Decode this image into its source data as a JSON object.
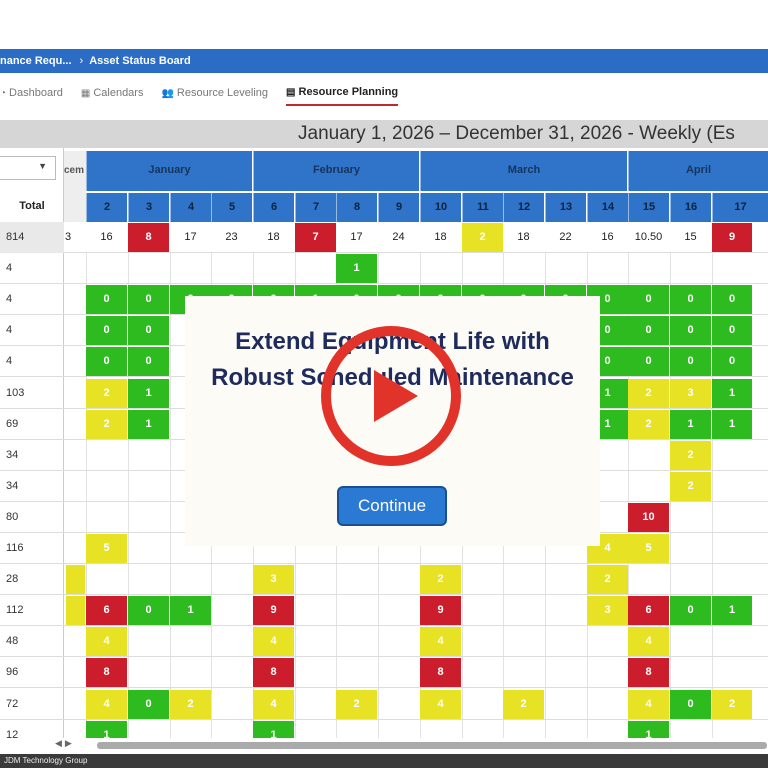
{
  "breadcrumb": {
    "parent": "nance Requ...",
    "current": "Asset Status Board"
  },
  "tabs": [
    {
      "label": "Dashboard",
      "icon": "dashboard-icon"
    },
    {
      "label": "Calendars",
      "icon": "calendar-icon"
    },
    {
      "label": "Resource Leveling",
      "icon": "users-icon"
    },
    {
      "label": "Resource Planning",
      "icon": "planning-icon",
      "active": true
    }
  ],
  "title": "January 1, 2026 – December 31, 2026 - Weekly (Es",
  "left": {
    "total_label": "Total",
    "prev_month_fragment": "cem"
  },
  "months": [
    "January",
    "February",
    "March",
    "April"
  ],
  "weeks": [
    "2",
    "3",
    "4",
    "5",
    "6",
    "7",
    "8",
    "9",
    "10",
    "11",
    "12",
    "13",
    "14",
    "15",
    "16",
    "17"
  ],
  "rows": [
    {
      "total": "814",
      "lead": "3",
      "cells": [
        {
          "v": "16"
        },
        {
          "v": "8",
          "c": "r"
        },
        {
          "v": "17"
        },
        {
          "v": "23"
        },
        {
          "v": "18"
        },
        {
          "v": "7",
          "c": "r"
        },
        {
          "v": "17"
        },
        {
          "v": "24"
        },
        {
          "v": "18"
        },
        {
          "v": "2",
          "c": "y"
        },
        {
          "v": "18"
        },
        {
          "v": "22"
        },
        {
          "v": "16"
        },
        {
          "v": "10.50"
        },
        {
          "v": "15"
        },
        {
          "v": "9",
          "c": "r"
        }
      ]
    },
    {
      "total": "4",
      "cells": [
        {},
        {},
        {},
        {},
        {},
        {},
        {
          "v": "1",
          "c": "g"
        },
        {},
        {},
        {},
        {},
        {},
        {},
        {},
        {},
        {}
      ]
    },
    {
      "total": "4",
      "cells": [
        {
          "v": "0",
          "c": "g"
        },
        {
          "v": "0",
          "c": "g"
        },
        {
          "v": "0",
          "c": "g"
        },
        {
          "v": "0",
          "c": "g"
        },
        {
          "v": "0",
          "c": "g"
        },
        {
          "v": "1",
          "c": "g"
        },
        {
          "v": "0",
          "c": "g"
        },
        {
          "v": "0",
          "c": "g"
        },
        {
          "v": "0",
          "c": "g"
        },
        {
          "v": "0",
          "c": "g"
        },
        {
          "v": "0",
          "c": "g"
        },
        {
          "v": "0",
          "c": "g"
        },
        {
          "v": "0",
          "c": "g"
        },
        {
          "v": "0",
          "c": "g"
        },
        {
          "v": "0",
          "c": "g"
        },
        {
          "v": "0",
          "c": "g"
        }
      ]
    },
    {
      "total": "4",
      "cells": [
        {
          "v": "0",
          "c": "g"
        },
        {
          "v": "0",
          "c": "g"
        },
        {},
        {},
        {},
        {},
        {},
        {},
        {},
        {},
        {},
        {},
        {
          "v": "0",
          "c": "g"
        },
        {
          "v": "0",
          "c": "g"
        },
        {
          "v": "0",
          "c": "g"
        },
        {
          "v": "0",
          "c": "g"
        }
      ]
    },
    {
      "total": "4",
      "cells": [
        {
          "v": "0",
          "c": "g"
        },
        {
          "v": "0",
          "c": "g"
        },
        {},
        {},
        {},
        {},
        {},
        {},
        {},
        {},
        {},
        {},
        {
          "v": "0",
          "c": "g"
        },
        {
          "v": "0",
          "c": "g"
        },
        {
          "v": "0",
          "c": "g"
        },
        {
          "v": "0",
          "c": "g"
        }
      ]
    },
    {
      "total": "103",
      "cells": [
        {
          "v": "2",
          "c": "y"
        },
        {
          "v": "1",
          "c": "g"
        },
        {},
        {},
        {},
        {},
        {},
        {},
        {},
        {},
        {},
        {},
        {
          "v": "1",
          "c": "g"
        },
        {
          "v": "2",
          "c": "y"
        },
        {
          "v": "3",
          "c": "y"
        },
        {
          "v": "1",
          "c": "g"
        }
      ]
    },
    {
      "total": "69",
      "cells": [
        {
          "v": "2",
          "c": "y"
        },
        {
          "v": "1",
          "c": "g"
        },
        {},
        {},
        {},
        {},
        {},
        {},
        {},
        {},
        {},
        {},
        {
          "v": "1",
          "c": "g"
        },
        {
          "v": "2",
          "c": "y"
        },
        {
          "v": "1",
          "c": "g"
        },
        {
          "v": "1",
          "c": "g"
        }
      ]
    },
    {
      "total": "34",
      "cells": [
        {},
        {},
        {},
        {},
        {},
        {},
        {},
        {},
        {},
        {},
        {},
        {},
        {},
        {},
        {
          "v": "2",
          "c": "y"
        },
        {}
      ]
    },
    {
      "total": "34",
      "cells": [
        {},
        {},
        {},
        {},
        {},
        {},
        {},
        {},
        {},
        {},
        {},
        {},
        {},
        {},
        {
          "v": "2",
          "c": "y"
        },
        {}
      ]
    },
    {
      "total": "80",
      "cells": [
        {},
        {},
        {},
        {},
        {},
        {},
        {},
        {},
        {},
        {},
        {},
        {},
        {},
        {
          "v": "10",
          "c": "r"
        },
        {},
        {}
      ]
    },
    {
      "total": "116",
      "cells": [
        {
          "v": "5",
          "c": "y"
        },
        {},
        {},
        {},
        {},
        {},
        {},
        {},
        {},
        {},
        {},
        {},
        {
          "v": "4",
          "c": "y"
        },
        {
          "v": "5",
          "c": "y"
        },
        {},
        {}
      ]
    },
    {
      "total": "28",
      "lead_c": "y",
      "cells": [
        {},
        {},
        {},
        {},
        {
          "v": "3",
          "c": "y"
        },
        {},
        {},
        {},
        {
          "v": "2",
          "c": "y"
        },
        {},
        {},
        {},
        {
          "v": "2",
          "c": "y"
        },
        {},
        {},
        {}
      ]
    },
    {
      "total": "112",
      "lead_c": "y",
      "cells": [
        {
          "v": "6",
          "c": "r"
        },
        {
          "v": "0",
          "c": "g"
        },
        {
          "v": "1",
          "c": "g"
        },
        {},
        {
          "v": "9",
          "c": "r"
        },
        {},
        {},
        {},
        {
          "v": "9",
          "c": "r"
        },
        {},
        {},
        {},
        {
          "v": "3",
          "c": "y"
        },
        {
          "v": "6",
          "c": "r"
        },
        {
          "v": "0",
          "c": "g"
        },
        {
          "v": "1",
          "c": "g"
        }
      ]
    },
    {
      "total": "48",
      "cells": [
        {
          "v": "4",
          "c": "y"
        },
        {},
        {},
        {},
        {
          "v": "4",
          "c": "y"
        },
        {},
        {},
        {},
        {
          "v": "4",
          "c": "y"
        },
        {},
        {},
        {},
        {},
        {
          "v": "4",
          "c": "y"
        },
        {},
        {}
      ]
    },
    {
      "total": "96",
      "cells": [
        {
          "v": "8",
          "c": "r"
        },
        {},
        {},
        {},
        {
          "v": "8",
          "c": "r"
        },
        {},
        {},
        {},
        {
          "v": "8",
          "c": "r"
        },
        {},
        {},
        {},
        {},
        {
          "v": "8",
          "c": "r"
        },
        {},
        {}
      ]
    },
    {
      "total": "72",
      "cells": [
        {
          "v": "4",
          "c": "y"
        },
        {
          "v": "0",
          "c": "g"
        },
        {
          "v": "2",
          "c": "y"
        },
        {},
        {
          "v": "4",
          "c": "y"
        },
        {},
        {
          "v": "2",
          "c": "y"
        },
        {},
        {
          "v": "4",
          "c": "y"
        },
        {},
        {
          "v": "2",
          "c": "y"
        },
        {},
        {},
        {
          "v": "4",
          "c": "y"
        },
        {
          "v": "0",
          "c": "g"
        },
        {
          "v": "2",
          "c": "y"
        }
      ]
    },
    {
      "total": "12",
      "cells": [
        {
          "v": "1",
          "c": "g"
        },
        {},
        {},
        {},
        {
          "v": "1",
          "c": "g"
        },
        {},
        {},
        {},
        {},
        {},
        {},
        {},
        {},
        {
          "v": "1",
          "c": "g"
        },
        {},
        {}
      ]
    }
  ],
  "overlay": {
    "heading": "Extend Equipment Life with Robust Scheduled Maintenance",
    "button": "Continue"
  },
  "footer": "JDM Technology Group"
}
